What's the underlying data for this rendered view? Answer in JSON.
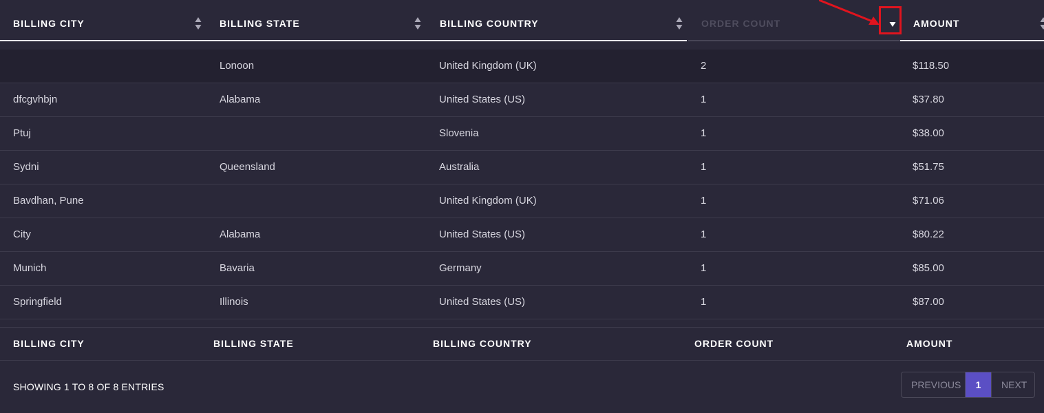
{
  "header": {
    "columns": [
      {
        "label": "BILLING CITY"
      },
      {
        "label": "BILLING STATE"
      },
      {
        "label": "BILLING COUNTRY"
      },
      {
        "label": "ORDER COUNT",
        "state": "active-sort-descending"
      },
      {
        "label": "AMOUNT"
      }
    ]
  },
  "rows": [
    {
      "city": "",
      "state": "Lonoon",
      "country": "United Kingdom (UK)",
      "order_count": "2",
      "amount": "$118.50"
    },
    {
      "city": "dfcgvhbjn",
      "state": "Alabama",
      "country": "United States (US)",
      "order_count": "1",
      "amount": "$37.80"
    },
    {
      "city": "Ptuj",
      "state": "",
      "country": "Slovenia",
      "order_count": "1",
      "amount": "$38.00"
    },
    {
      "city": "Sydni",
      "state": "Queensland",
      "country": "Australia",
      "order_count": "1",
      "amount": "$51.75"
    },
    {
      "city": "Bavdhan, Pune",
      "state": "",
      "country": "United Kingdom (UK)",
      "order_count": "1",
      "amount": "$71.06"
    },
    {
      "city": "City",
      "state": "Alabama",
      "country": "United States (US)",
      "order_count": "1",
      "amount": "$80.22"
    },
    {
      "city": "Munich",
      "state": "Bavaria",
      "country": "Germany",
      "order_count": "1",
      "amount": "$85.00"
    },
    {
      "city": "Springfield",
      "state": "Illinois",
      "country": "United States (US)",
      "order_count": "1",
      "amount": "$87.00"
    }
  ],
  "footer": {
    "columns": [
      {
        "label": "BILLING CITY"
      },
      {
        "label": "BILLING STATE"
      },
      {
        "label": "BILLING COUNTRY"
      },
      {
        "label": "ORDER COUNT"
      },
      {
        "label": "AMOUNT"
      }
    ]
  },
  "info": "SHOWING 1 TO 8 OF 8 ENTRIES",
  "pagination": {
    "previous": "PREVIOUS",
    "current": "1",
    "next": "NEXT"
  },
  "icons": {
    "sort": "sort-icon",
    "sort_desc": "sort-descending-icon",
    "annotation": "red-arrow-icon"
  },
  "colors": {
    "background": "#2a2839",
    "highlight_row": "#232130",
    "accent": "#5b4fc4",
    "annotation": "#e0141e"
  }
}
